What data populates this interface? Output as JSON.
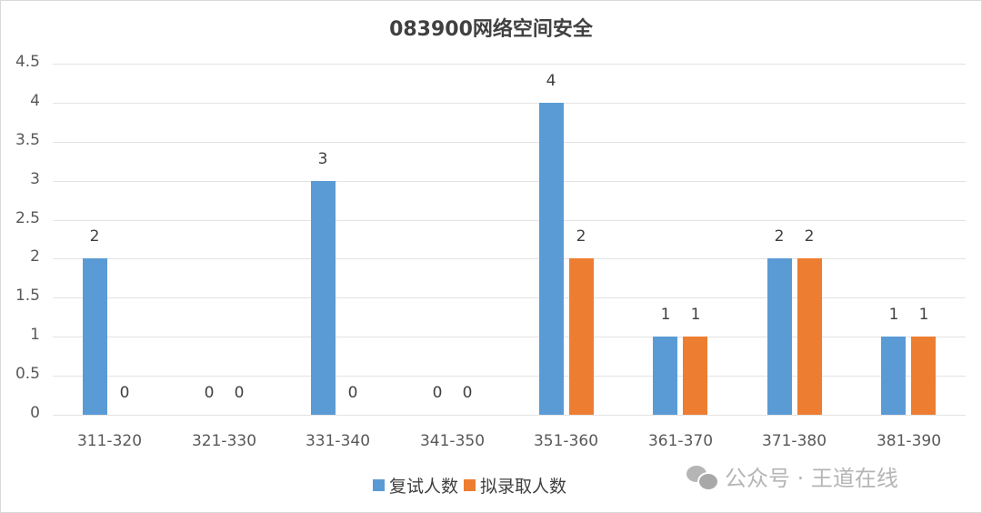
{
  "chart_data": {
    "type": "bar",
    "title": "083900网络空间安全",
    "xlabel": "",
    "ylabel": "",
    "ylim": [
      0,
      4.5
    ],
    "yticks": [
      0,
      0.5,
      1,
      1.5,
      2,
      2.5,
      3,
      3.5,
      4,
      4.5
    ],
    "ytick_labels": [
      "0",
      "0.5",
      "1",
      "1.5",
      "2",
      "2.5",
      "3",
      "3.5",
      "4",
      "4.5"
    ],
    "grid": true,
    "legend_position": "bottom",
    "categories": [
      "311-320",
      "321-330",
      "331-340",
      "341-350",
      "351-360",
      "361-370",
      "371-380",
      "381-390"
    ],
    "series": [
      {
        "name": "复试人数",
        "color": "#5b9bd5",
        "values": [
          2,
          0,
          3,
          0,
          4,
          1,
          2,
          1
        ]
      },
      {
        "name": "拟录取人数",
        "color": "#ed7d31",
        "values": [
          0,
          0,
          0,
          0,
          2,
          1,
          2,
          1
        ]
      }
    ]
  },
  "watermark": {
    "icon": "wechat-icon",
    "text": "公众号 · 王道在线"
  }
}
